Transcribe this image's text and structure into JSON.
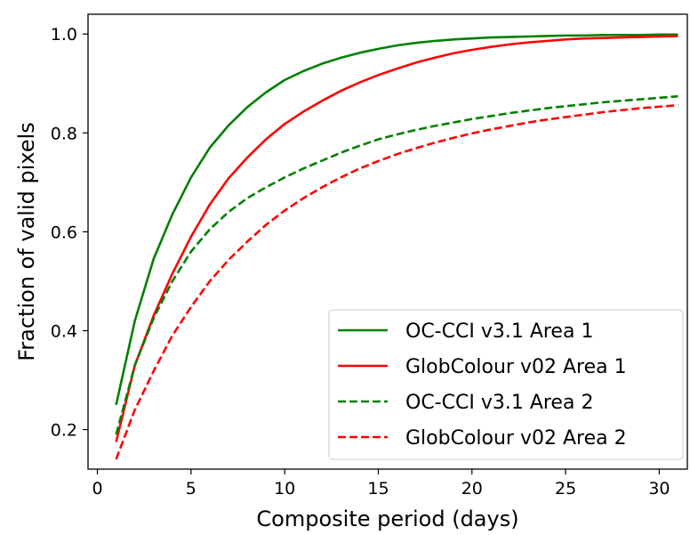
{
  "chart_data": {
    "type": "line",
    "title": "",
    "xlabel": "Composite period (days)",
    "ylabel": "Fraction of valid pixels",
    "xlim": [
      -0.5,
      31.5
    ],
    "ylim": [
      0.12,
      1.04
    ],
    "xticks": [
      0,
      5,
      10,
      15,
      20,
      25,
      30
    ],
    "xtick_labels": [
      "0",
      "5",
      "10",
      "15",
      "20",
      "25",
      "30"
    ],
    "yticks": [
      0.2,
      0.4,
      0.6,
      0.8,
      1.0
    ],
    "ytick_labels": [
      "0.2",
      "0.4",
      "0.6",
      "0.8",
      "1.0"
    ],
    "grid": false,
    "legend_position": "lower-right",
    "x": [
      1,
      2,
      3,
      4,
      5,
      6,
      7,
      8,
      9,
      10,
      11,
      12,
      13,
      14,
      15,
      16,
      17,
      18,
      19,
      20,
      21,
      22,
      23,
      24,
      25,
      26,
      27,
      28,
      29,
      30,
      31
    ],
    "series": [
      {
        "name": "OC-CCI v3.1 Area 1",
        "color": "#008000",
        "dash": "solid",
        "values": [
          0.25,
          0.42,
          0.545,
          0.635,
          0.71,
          0.77,
          0.815,
          0.852,
          0.882,
          0.907,
          0.925,
          0.94,
          0.952,
          0.962,
          0.97,
          0.977,
          0.982,
          0.986,
          0.989,
          0.991,
          0.993,
          0.994,
          0.995,
          0.996,
          0.997,
          0.997,
          0.998,
          0.998,
          0.998,
          0.999,
          0.999
        ]
      },
      {
        "name": "GlobColour v02 Area 1",
        "color": "#ff0000",
        "dash": "solid",
        "values": [
          0.175,
          0.33,
          0.43,
          0.515,
          0.59,
          0.655,
          0.708,
          0.75,
          0.787,
          0.818,
          0.843,
          0.865,
          0.885,
          0.902,
          0.917,
          0.93,
          0.942,
          0.952,
          0.961,
          0.968,
          0.974,
          0.979,
          0.983,
          0.986,
          0.989,
          0.991,
          0.992,
          0.993,
          0.994,
          0.995,
          0.996
        ]
      },
      {
        "name": "OC-CCI v3.1 Area 2",
        "color": "#008000",
        "dash": "dashed",
        "values": [
          0.19,
          0.33,
          0.425,
          0.5,
          0.56,
          0.605,
          0.64,
          0.668,
          0.69,
          0.71,
          0.728,
          0.744,
          0.76,
          0.774,
          0.787,
          0.797,
          0.806,
          0.814,
          0.821,
          0.828,
          0.834,
          0.84,
          0.845,
          0.85,
          0.854,
          0.858,
          0.862,
          0.865,
          0.868,
          0.871,
          0.874
        ]
      },
      {
        "name": "GlobColour v02 Area 2",
        "color": "#ff0000",
        "dash": "dashed",
        "values": [
          0.14,
          0.24,
          0.318,
          0.39,
          0.448,
          0.5,
          0.543,
          0.58,
          0.614,
          0.643,
          0.668,
          0.69,
          0.71,
          0.728,
          0.743,
          0.757,
          0.769,
          0.78,
          0.79,
          0.799,
          0.807,
          0.814,
          0.821,
          0.827,
          0.832,
          0.837,
          0.842,
          0.846,
          0.85,
          0.853,
          0.856
        ]
      }
    ]
  }
}
